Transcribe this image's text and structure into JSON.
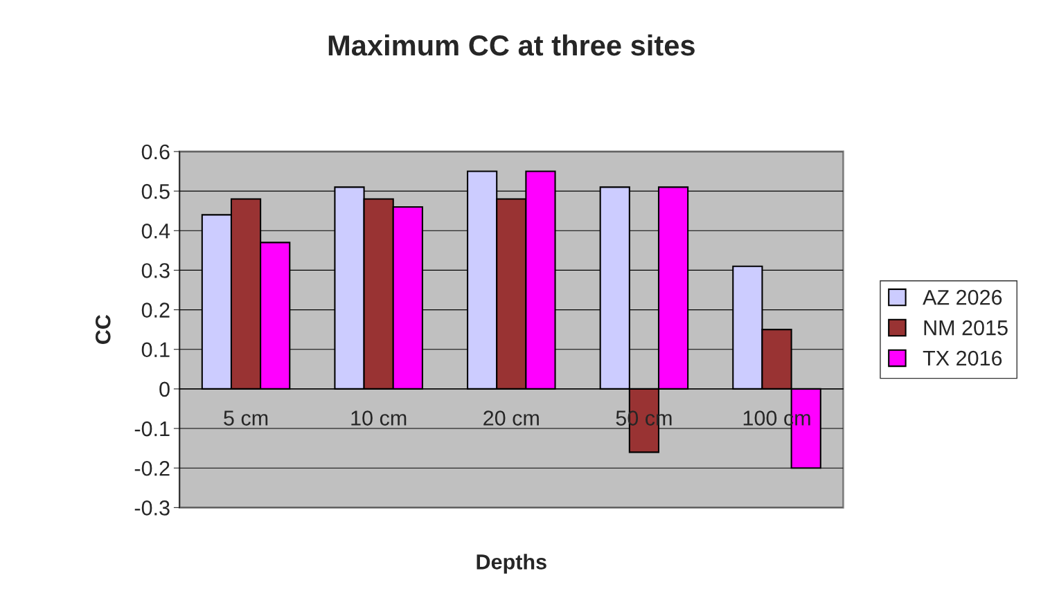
{
  "chart_data": {
    "type": "bar",
    "title": "Maximum CC at three sites",
    "xlabel": "Depths",
    "ylabel": "CC",
    "categories": [
      "5 cm",
      "10 cm",
      "20 cm",
      "50 cm",
      "100 cm"
    ],
    "series": [
      {
        "name": "AZ 2026",
        "color": "#ccccff",
        "values": [
          0.44,
          0.51,
          0.55,
          0.51,
          0.31
        ]
      },
      {
        "name": "NM 2015",
        "color": "#993333",
        "values": [
          0.48,
          0.48,
          0.48,
          -0.16,
          0.15
        ]
      },
      {
        "name": "TX 2016",
        "color": "#ff00ff",
        "values": [
          0.37,
          0.46,
          0.55,
          0.51,
          -0.2
        ]
      }
    ],
    "ylim": [
      -0.3,
      0.6
    ],
    "yticks": [
      -0.3,
      -0.2,
      -0.1,
      0,
      0.1,
      0.2,
      0.3,
      0.4,
      0.5,
      0.6
    ],
    "grid": "y",
    "legend": "right"
  }
}
